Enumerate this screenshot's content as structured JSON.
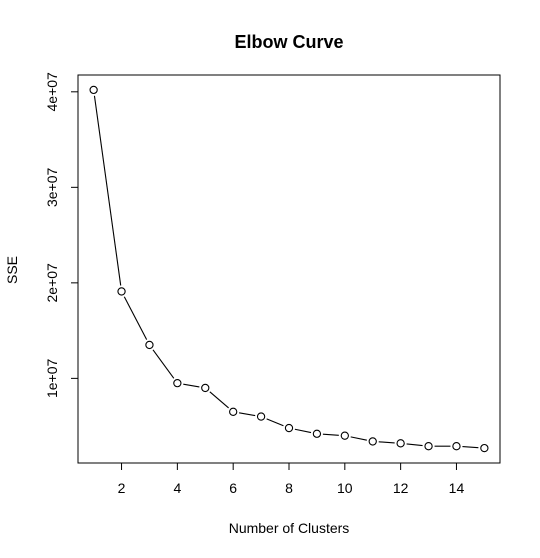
{
  "chart_data": {
    "type": "line",
    "title": "Elbow Curve",
    "xlabel": "Number of Clusters",
    "ylabel": "SSE",
    "x": [
      1,
      2,
      3,
      4,
      5,
      6,
      7,
      8,
      9,
      10,
      11,
      12,
      13,
      14,
      15
    ],
    "series": [
      {
        "name": "SSE",
        "values": [
          40200000,
          19100000,
          13500000,
          9500000,
          9000000,
          6500000,
          6000000,
          4800000,
          4200000,
          4000000,
          3400000,
          3200000,
          2900000,
          2900000,
          2700000
        ]
      }
    ],
    "x_ticks": [
      2,
      4,
      6,
      8,
      10,
      12,
      14
    ],
    "x_tick_labels": [
      "2",
      "4",
      "6",
      "8",
      "10",
      "12",
      "14"
    ],
    "y_ticks": [
      10000000,
      20000000,
      30000000,
      40000000
    ],
    "y_tick_labels": [
      "1e+07",
      "2e+07",
      "3e+07",
      "4e+07"
    ],
    "xlim": [
      0.44,
      15.56
    ],
    "ylim": [
      1140000,
      41760000
    ],
    "marker": "open-circle",
    "grid": false,
    "colors": {
      "line": "#000000",
      "marker_fill": "#ffffff"
    }
  }
}
